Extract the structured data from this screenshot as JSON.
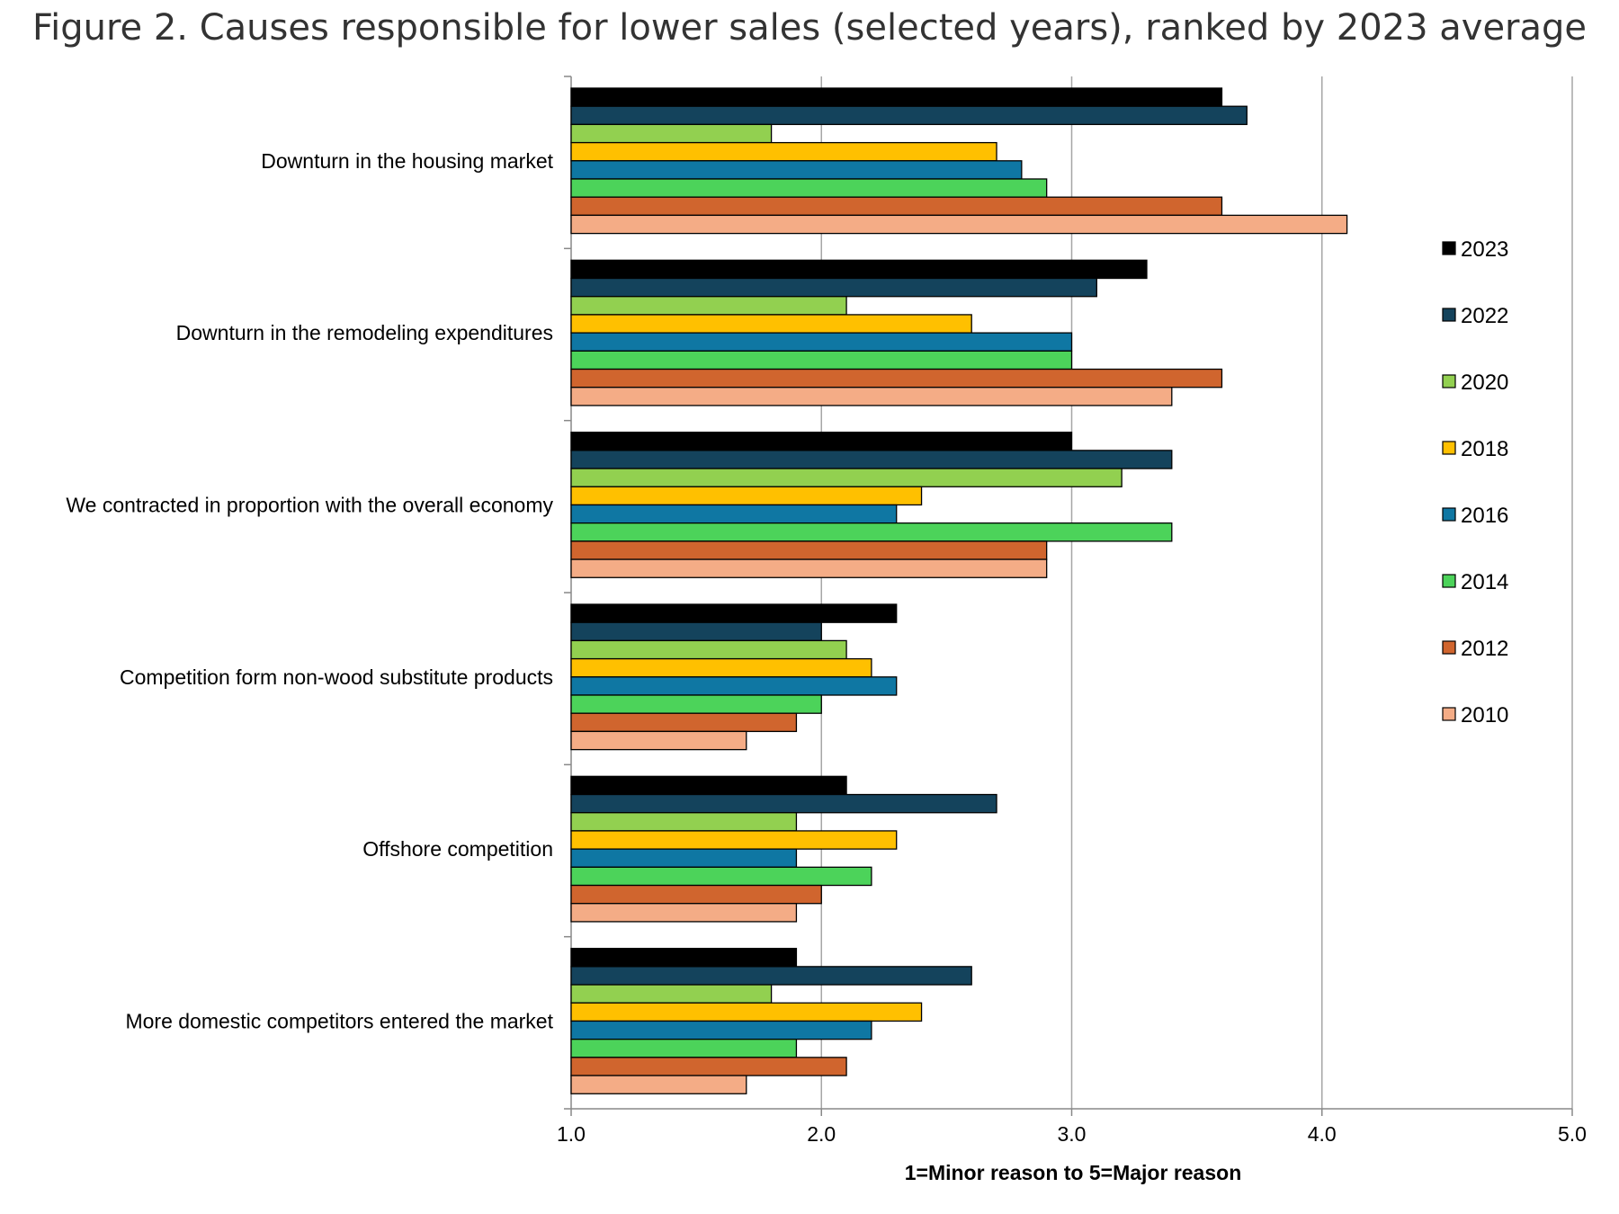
{
  "chart_data": {
    "type": "bar",
    "orientation": "horizontal",
    "title": "Figure 2. Causes responsible for lower sales (selected years), ranked by 2023 average",
    "xlabel": "1=Minor reason to 5=Major reason",
    "ylabel": "",
    "xlim": [
      1.0,
      5.0
    ],
    "xticks": [
      "1.0",
      "2.0",
      "3.0",
      "4.0",
      "5.0"
    ],
    "grid": "vertical",
    "legend_position": "right",
    "categories": [
      "Downturn in the housing market",
      "Downturn in the remodeling expenditures",
      "We contracted in proportion with the overall economy",
      "Competition form non-wood substitute products",
      "Offshore competition",
      "More domestic competitors entered the market"
    ],
    "series": [
      {
        "name": "2023",
        "color": "#000000",
        "values": [
          3.6,
          3.3,
          3.0,
          2.3,
          2.1,
          1.9
        ]
      },
      {
        "name": "2022",
        "color": "#14435c",
        "values": [
          3.7,
          3.1,
          3.4,
          2.0,
          2.7,
          2.6
        ]
      },
      {
        "name": "2020",
        "color": "#92d050",
        "values": [
          1.8,
          2.1,
          3.2,
          2.1,
          1.9,
          1.8
        ]
      },
      {
        "name": "2018",
        "color": "#ffc000",
        "values": [
          2.7,
          2.6,
          2.4,
          2.2,
          2.3,
          2.4
        ]
      },
      {
        "name": "2016",
        "color": "#0f77a3",
        "values": [
          2.8,
          3.0,
          2.3,
          2.3,
          1.9,
          2.2
        ]
      },
      {
        "name": "2014",
        "color": "#4cd35a",
        "values": [
          2.9,
          3.0,
          3.4,
          2.0,
          2.2,
          1.9
        ]
      },
      {
        "name": "2012",
        "color": "#d0652e",
        "values": [
          3.6,
          3.6,
          2.9,
          1.9,
          2.0,
          2.1
        ]
      },
      {
        "name": "2010",
        "color": "#f4ac86",
        "values": [
          4.1,
          3.4,
          2.9,
          1.7,
          1.9,
          1.7
        ]
      }
    ]
  }
}
